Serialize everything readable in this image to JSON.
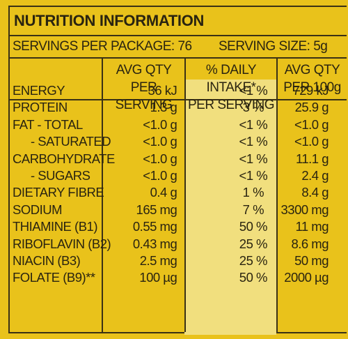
{
  "title": "NUTRITION INFORMATION",
  "servings_per_package": "SERVINGS PER PACKAGE: 76",
  "serving_size": "SERVING SIZE: 5g",
  "headers": {
    "col1_line1": "AVG QTY PER",
    "col1_line2": "SERVING",
    "col2_line1": "% DAILY INTAKE*",
    "col2_line2": "PER SERVING",
    "col3_line1": "AVG QTY",
    "col3_line2": "PER 100g"
  },
  "rows": [
    {
      "name": "ENERGY",
      "indent": false,
      "per_serving": "36 kJ",
      "daily_intake": "<1 %",
      "per_100g": "729 kJ"
    },
    {
      "name": "PROTEIN",
      "indent": false,
      "per_serving": "1.3 g",
      "daily_intake": "3 %",
      "per_100g": "25.9 g"
    },
    {
      "name": "FAT - TOTAL",
      "indent": false,
      "per_serving": "<1.0 g",
      "daily_intake": "<1 %",
      "per_100g": "<1.0 g"
    },
    {
      "name": "- SATURATED",
      "indent": true,
      "per_serving": "<1.0 g",
      "daily_intake": "<1 %",
      "per_100g": "<1.0 g"
    },
    {
      "name": "CARBOHYDRATE",
      "indent": false,
      "per_serving": "<1.0 g",
      "daily_intake": "<1 %",
      "per_100g": "11.1 g"
    },
    {
      "name": "- SUGARS",
      "indent": true,
      "per_serving": "<1.0 g",
      "daily_intake": "<1 %",
      "per_100g": "2.4 g"
    },
    {
      "name": "DIETARY FIBRE",
      "indent": false,
      "per_serving": "0.4 g",
      "daily_intake": "1 %",
      "per_100g": "8.4 g"
    },
    {
      "name": "SODIUM",
      "indent": false,
      "per_serving": "165 mg",
      "daily_intake": "7 %",
      "per_100g": "3300 mg"
    },
    {
      "name": "THIAMINE (B1)",
      "indent": false,
      "per_serving": "0.55 mg",
      "daily_intake": "50 %",
      "per_100g": "11 mg"
    },
    {
      "name": "RIBOFLAVIN (B2)",
      "indent": false,
      "per_serving": "0.43 mg",
      "daily_intake": "25 %",
      "per_100g": "8.6 mg"
    },
    {
      "name": "NIACIN (B3)",
      "indent": false,
      "per_serving": "2.5 mg",
      "daily_intake": "25 %",
      "per_100g": "50 mg"
    },
    {
      "name": "FOLATE (B9)**",
      "indent": false,
      "per_serving": "100 µg",
      "daily_intake": "50 %",
      "per_100g": "2000 µg"
    }
  ],
  "colors": {
    "background": "#e9c21b",
    "daily_intake_column": "#f1df7e",
    "text": "#2a2410"
  }
}
